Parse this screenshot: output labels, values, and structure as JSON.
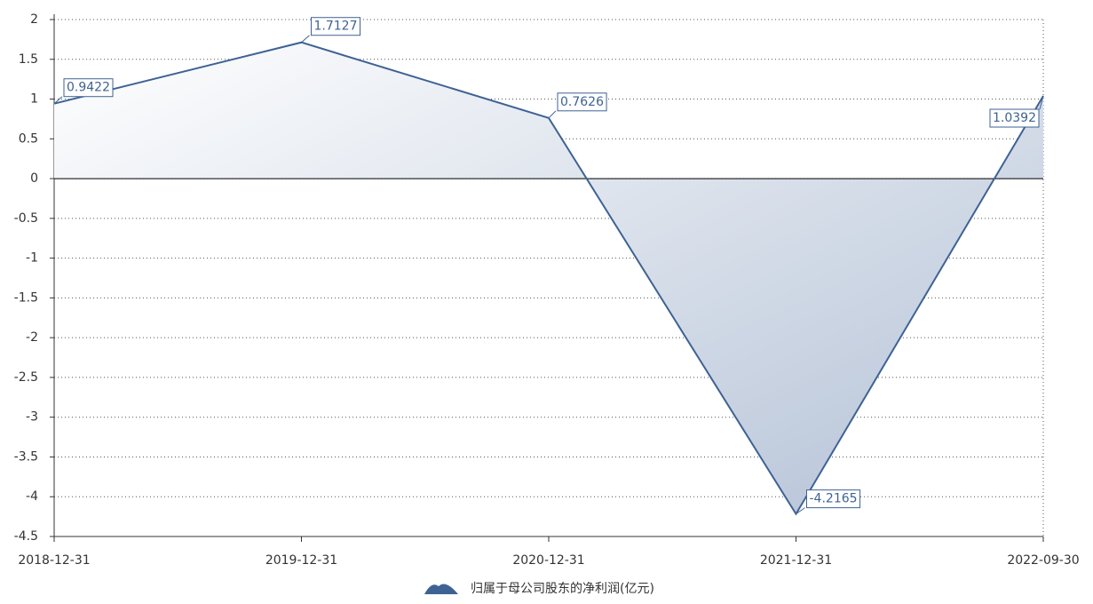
{
  "chart_data": {
    "type": "area",
    "categories": [
      "2018-12-31",
      "2019-12-31",
      "2020-12-31",
      "2021-12-31",
      "2022-09-30"
    ],
    "series": [
      {
        "name": "归属于母公司股东的净利润(亿元)",
        "color": "#3e6294",
        "values": [
          0.9422,
          1.7127,
          0.7626,
          -4.2165,
          1.0392
        ]
      }
    ],
    "ylim": [
      -4.5,
      2
    ],
    "yticks": [
      2,
      1.5,
      1,
      0.5,
      0,
      -0.5,
      -1,
      -1.5,
      -2,
      -2.5,
      -3,
      -3.5,
      -4,
      -4.5
    ],
    "grid": true,
    "legend": "bottom"
  }
}
